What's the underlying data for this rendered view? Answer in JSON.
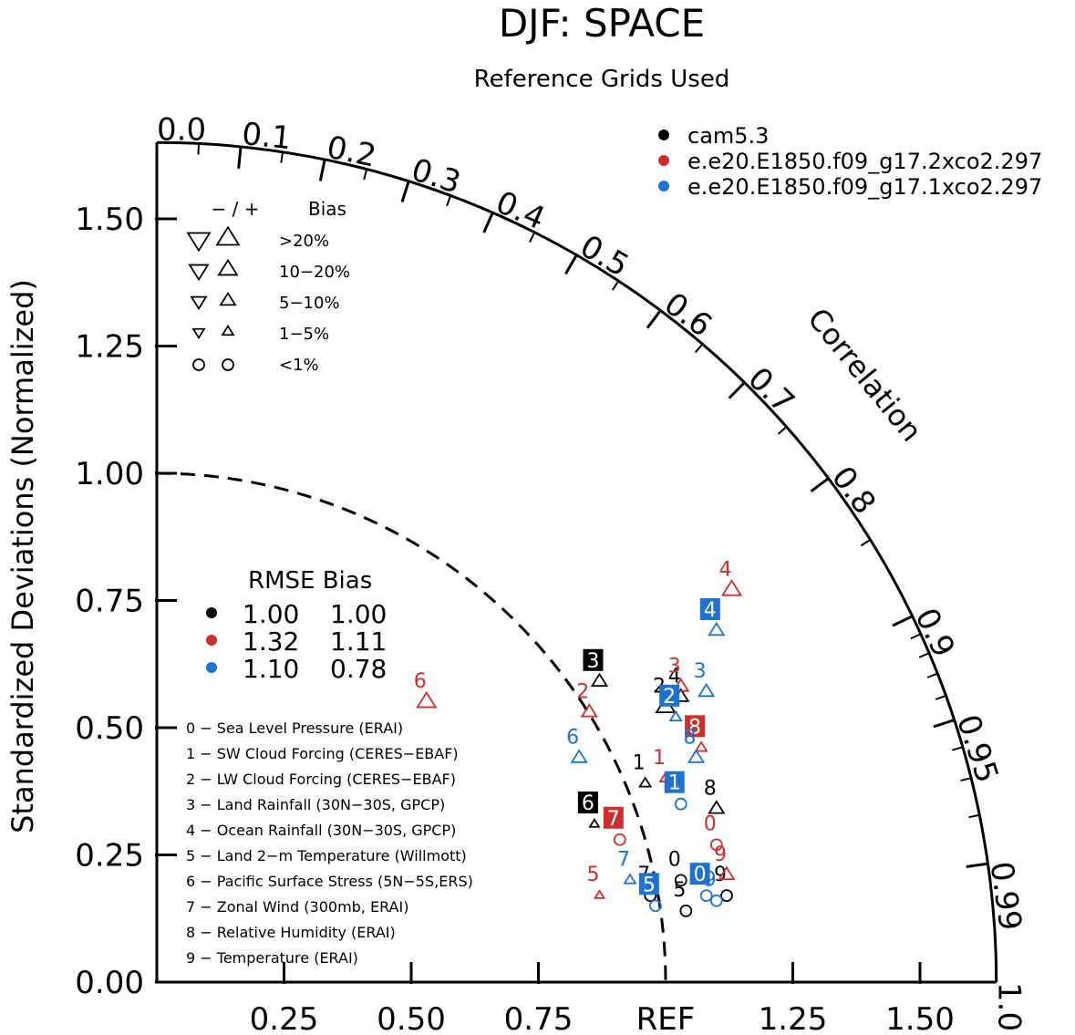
{
  "chart_data": {
    "type": "scatter",
    "subtype": "taylor-diagram",
    "title": "DJF: SPACE",
    "subtitle": "Reference Grids Used",
    "ylabel": "Standardized Deviations (Normalized)",
    "correlation_label": "Correlation",
    "ref_label": "REF",
    "std_range": [
      0,
      1.65
    ],
    "y_ticks": [
      "0.00",
      "0.25",
      "0.50",
      "0.75",
      "1.00",
      "1.25",
      "1.50"
    ],
    "x_ticks": [
      "0.25",
      "0.50",
      "0.75",
      "1.25",
      "1.50"
    ],
    "corr_ticks": [
      {
        "label": "0.0",
        "r": 0.0
      },
      {
        "label": "0.1",
        "r": 0.1
      },
      {
        "label": "0.2",
        "r": 0.2
      },
      {
        "label": "0.3",
        "r": 0.3
      },
      {
        "label": "0.4",
        "r": 0.4
      },
      {
        "label": "0.5",
        "r": 0.5
      },
      {
        "label": "0.6",
        "r": 0.6
      },
      {
        "label": "0.7",
        "r": 0.7
      },
      {
        "label": "0.8",
        "r": 0.8
      },
      {
        "label": "0.9",
        "r": 0.9
      },
      {
        "label": "0.95",
        "r": 0.95
      },
      {
        "label": "0.99",
        "r": 0.99
      },
      {
        "label": "1.0",
        "r": 1.0
      }
    ],
    "minor_corr_ticks": [
      0.05,
      0.15,
      0.25,
      0.35,
      0.45,
      0.55,
      0.65,
      0.75,
      0.85,
      0.91,
      0.92,
      0.93,
      0.94,
      0.96,
      0.97,
      0.98
    ],
    "legend_models": [
      {
        "name": "cam5.3",
        "color": "#000000"
      },
      {
        "name": "e.e20.E1850.f09_g17.2xco2.297",
        "color": "#cc2f2f"
      },
      {
        "name": "e.e20.E1850.f09_g17.1xco2.297",
        "color": "#1f72cf"
      }
    ],
    "bias_legend": {
      "header_symbols": "− / +",
      "header_label": "Bias",
      "rows": [
        {
          "label": ">20%",
          "shape": "triangle",
          "size": 12
        },
        {
          "label": "10−20%",
          "shape": "triangle",
          "size": 10
        },
        {
          "label": "5−10%",
          "shape": "triangle",
          "size": 8
        },
        {
          "label": "1−5%",
          "shape": "triangle",
          "size": 6
        },
        {
          "label": "<1%",
          "shape": "circle",
          "size": 6
        }
      ]
    },
    "rmse_bias_table": {
      "header": "RMSE Bias",
      "rows": [
        {
          "color": "#000000",
          "rmse": "1.00",
          "bias": "1.00"
        },
        {
          "color": "#cc2f2f",
          "rmse": "1.32",
          "bias": "1.11"
        },
        {
          "color": "#1f72cf",
          "rmse": "1.10",
          "bias": "0.78"
        }
      ]
    },
    "variables": [
      "0 − Sea Level Pressure (ERAI)",
      "1 − SW Cloud Forcing (CERES−EBAF)",
      "2 − LW Cloud Forcing (CERES−EBAF)",
      "3 − Land Rainfall (30N−30S, GPCP)",
      "4 − Ocean Rainfall (30N−30S, GPCP)",
      "5 − Land 2−m Temperature (Willmott)",
      "6 − Pacific Surface Stress (5N−5S,ERS)",
      "7 − Zonal Wind (300mb, ERAI)",
      "8 − Relative Humidity (ERAI)",
      "9 − Temperature (ERAI)"
    ],
    "series": [
      {
        "name": "cam5.3",
        "color": "#000000",
        "points": [
          {
            "id": "0",
            "x": 1.03,
            "y": 0.2,
            "marker": "circle",
            "size": 6,
            "boxed": false
          },
          {
            "id": "1",
            "x": 0.96,
            "y": 0.39,
            "marker": "tri-up",
            "size": 6,
            "boxed": false
          },
          {
            "id": "2",
            "x": 1.0,
            "y": 0.54,
            "marker": "tri-up",
            "size": 10,
            "boxed": false
          },
          {
            "id": "3",
            "x": 0.87,
            "y": 0.59,
            "marker": "tri-up",
            "size": 8,
            "boxed": true
          },
          {
            "id": "4",
            "x": 1.03,
            "y": 0.56,
            "marker": "tri-up",
            "size": 8,
            "boxed": false
          },
          {
            "id": "5",
            "x": 1.04,
            "y": 0.14,
            "marker": "circle",
            "size": 6,
            "boxed": false
          },
          {
            "id": "6",
            "x": 0.86,
            "y": 0.31,
            "marker": "tri-up",
            "size": 5,
            "boxed": true
          },
          {
            "id": "7",
            "x": 0.97,
            "y": 0.17,
            "marker": "circle",
            "size": 6,
            "boxed": false
          },
          {
            "id": "8",
            "x": 1.1,
            "y": 0.34,
            "marker": "tri-up",
            "size": 8,
            "boxed": false
          },
          {
            "id": "9",
            "x": 1.12,
            "y": 0.17,
            "marker": "circle",
            "size": 6,
            "boxed": false
          }
        ]
      },
      {
        "name": "e.e20.E1850.f09_g17.2xco2.297",
        "color": "#cc2f2f",
        "points": [
          {
            "id": "0",
            "x": 1.1,
            "y": 0.27,
            "marker": "circle",
            "size": 6,
            "boxed": false
          },
          {
            "id": "1",
            "x": 1.0,
            "y": 0.4,
            "marker": "tri-up",
            "size": 6,
            "boxed": false
          },
          {
            "id": "2",
            "x": 0.85,
            "y": 0.53,
            "marker": "tri-up",
            "size": 8,
            "boxed": false
          },
          {
            "id": "3",
            "x": 1.03,
            "y": 0.58,
            "marker": "tri-up",
            "size": 8,
            "boxed": false
          },
          {
            "id": "4",
            "x": 1.13,
            "y": 0.77,
            "marker": "tri-up",
            "size": 10,
            "boxed": false
          },
          {
            "id": "5",
            "x": 0.87,
            "y": 0.17,
            "marker": "tri-up",
            "size": 5,
            "boxed": false
          },
          {
            "id": "6",
            "x": 0.53,
            "y": 0.55,
            "marker": "tri-up",
            "size": 10,
            "boxed": false
          },
          {
            "id": "7",
            "x": 0.91,
            "y": 0.28,
            "marker": "circle",
            "size": 6,
            "boxed": true
          },
          {
            "id": "8",
            "x": 1.07,
            "y": 0.46,
            "marker": "tri-up",
            "size": 6,
            "boxed": true
          },
          {
            "id": "9",
            "x": 1.12,
            "y": 0.21,
            "marker": "tri-up",
            "size": 8,
            "boxed": false
          }
        ]
      },
      {
        "name": "e.e20.E1850.f09_g17.1xco2.297",
        "color": "#1f72cf",
        "points": [
          {
            "id": "0",
            "x": 1.08,
            "y": 0.17,
            "marker": "circle",
            "size": 6,
            "boxed": true
          },
          {
            "id": "1",
            "x": 1.03,
            "y": 0.35,
            "marker": "circle",
            "size": 6,
            "boxed": true
          },
          {
            "id": "2",
            "x": 1.02,
            "y": 0.52,
            "marker": "tri-up",
            "size": 6,
            "boxed": true
          },
          {
            "id": "3",
            "x": 1.08,
            "y": 0.57,
            "marker": "tri-up",
            "size": 8,
            "boxed": false
          },
          {
            "id": "4",
            "x": 1.1,
            "y": 0.69,
            "marker": "tri-up",
            "size": 8,
            "boxed": true
          },
          {
            "id": "5",
            "x": 0.98,
            "y": 0.15,
            "marker": "circle",
            "size": 6,
            "boxed": true
          },
          {
            "id": "6",
            "x": 0.83,
            "y": 0.44,
            "marker": "tri-up",
            "size": 8,
            "boxed": false
          },
          {
            "id": "7",
            "x": 0.93,
            "y": 0.2,
            "marker": "tri-up",
            "size": 6,
            "boxed": false
          },
          {
            "id": "8",
            "x": 1.06,
            "y": 0.44,
            "marker": "tri-up",
            "size": 8,
            "boxed": false
          },
          {
            "id": "9",
            "x": 1.1,
            "y": 0.16,
            "marker": "circle",
            "size": 6,
            "boxed": false
          }
        ]
      }
    ]
  }
}
